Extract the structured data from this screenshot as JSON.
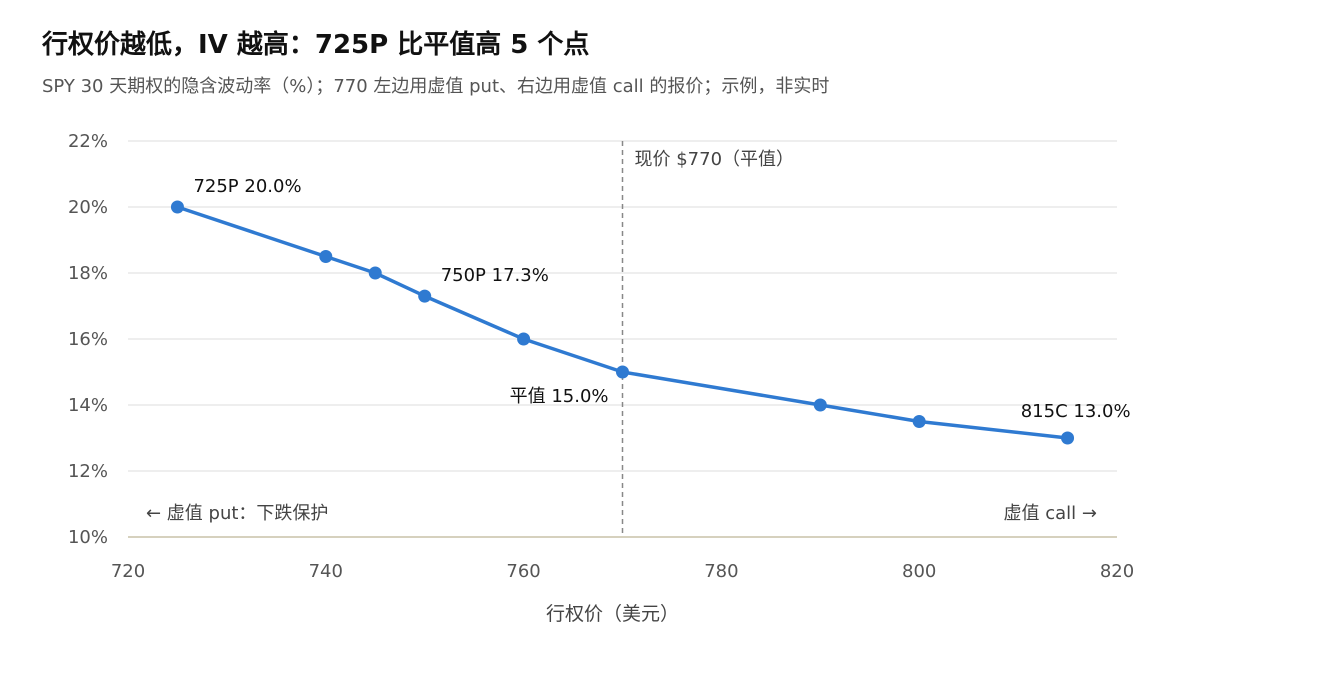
{
  "header": {
    "title": "行权价越低，IV 越高：725P 比平值高 5 个点",
    "subtitle": "SPY 30 天期权的隐含波动率（%）；770 左边用虚值 put、右边用虚值 call 的报价；示例，非实时"
  },
  "chart_data": {
    "type": "line",
    "title": "行权价越低，IV 越高：725P 比平值高 5 个点",
    "xlabel": "行权价（美元）",
    "ylabel": "",
    "xlim": [
      720,
      820
    ],
    "ylim": [
      10,
      22
    ],
    "x_ticks": [
      720,
      740,
      760,
      780,
      800,
      820
    ],
    "y_ticks": [
      10,
      12,
      14,
      16,
      18,
      20,
      22
    ],
    "y_tick_labels": [
      "10%",
      "12%",
      "14%",
      "16%",
      "18%",
      "20%",
      "22%"
    ],
    "grid": "horizontal",
    "color": "#2f7ad1",
    "series": [
      {
        "x": [
          725,
          740,
          745,
          750,
          760,
          770,
          790,
          800,
          815
        ],
        "values": [
          20.0,
          18.5,
          18.0,
          17.3,
          16.0,
          15.0,
          14.0,
          13.5,
          13.0
        ]
      }
    ],
    "annotations": [
      {
        "x": 725,
        "y": 20.0,
        "text": "725P 20.0%"
      },
      {
        "x": 750,
        "y": 17.3,
        "text": "750P 17.3%"
      },
      {
        "x": 770,
        "y": 15.0,
        "text": "平值 15.0%"
      },
      {
        "x": 815,
        "y": 13.0,
        "text": "815C 13.0%"
      }
    ],
    "reference_line": {
      "x": 770,
      "text": "现价 $770（平值）"
    },
    "region_labels": {
      "left": "← 虚值 put：下跌保护",
      "right": "虚值 call →"
    }
  }
}
